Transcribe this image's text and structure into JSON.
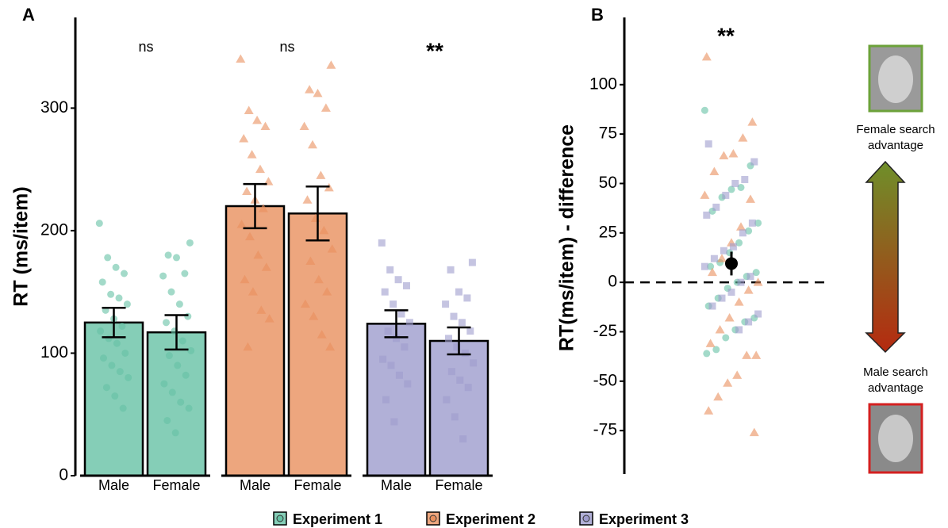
{
  "chart_data": [
    {
      "type": "bar",
      "panel_label": "A",
      "ylabel": "RT (ms/item)",
      "categories": [
        "Male",
        "Female"
      ],
      "ylim": [
        0,
        374
      ],
      "yticks": [
        0,
        100,
        200,
        300
      ],
      "annotations": [
        "ns",
        "ns",
        "**"
      ],
      "series": [
        {
          "name": "Experiment 1",
          "color": "#66c2a5",
          "marker": "circle",
          "values": [
            125,
            117
          ],
          "errors": [
            12,
            14
          ],
          "points": [
            [
              206,
              178,
              170,
              165,
              158,
              148,
              145,
              140,
              135,
              128,
              122,
              118,
              112,
              108,
              100,
              96,
              90,
              85,
              80,
              72,
              65,
              55
            ],
            [
              190,
              180,
              178,
              165,
              163,
              150,
              140,
              130,
              125,
              118,
              110,
              102,
              98,
              90,
              82,
              75,
              68,
              60,
              55,
              45,
              35
            ]
          ]
        },
        {
          "name": "Experiment 2",
          "color": "#e9905e",
          "marker": "triangle",
          "values": [
            220,
            214
          ],
          "errors": [
            18,
            22
          ],
          "points": [
            [
              340,
              298,
              290,
              285,
              275,
              262,
              250,
              240,
              232,
              225,
              218,
              205,
              195,
              180,
              170,
              160,
              150,
              135,
              128,
              105
            ],
            [
              335,
              315,
              312,
              300,
              285,
              270,
              245,
              235,
              225,
              210,
              200,
              185,
              175,
              160,
              150,
              140,
              130,
              115,
              105
            ]
          ]
        },
        {
          "name": "Experiment 3",
          "color": "#9e9ccd",
          "marker": "square",
          "values": [
            124,
            110
          ],
          "errors": [
            11,
            11
          ],
          "points": [
            [
              190,
              168,
              160,
              155,
              150,
              140,
              132,
              125,
              118,
              112,
              105,
              95,
              90,
              82,
              75,
              62,
              44
            ],
            [
              174,
              168,
              150,
              145,
              140,
              130,
              125,
              118,
              112,
              105,
              100,
              92,
              85,
              78,
              72,
              62,
              48,
              30
            ]
          ]
        }
      ]
    },
    {
      "type": "strip",
      "panel_label": "B",
      "ylabel": "RT(ms/item) - difference",
      "ylim": [
        -97,
        134
      ],
      "yticks": [
        -75,
        -50,
        -25,
        0,
        25,
        50,
        75,
        100
      ],
      "annotation": "**",
      "mean": 9.5,
      "error": 6,
      "reference_line": 0,
      "top_label": "Female search advantage",
      "bottom_label": "Male search advantage",
      "series": [
        {
          "name": "Experiment 1",
          "color": "#66c2a5",
          "marker": "circle",
          "values": [
            87,
            59,
            48,
            47,
            43,
            36,
            30,
            26,
            20,
            15,
            10,
            8,
            5,
            3,
            0,
            -3,
            -8,
            -12,
            -18,
            -20,
            -24,
            -28,
            -34,
            -36
          ]
        },
        {
          "name": "Experiment 2",
          "color": "#e9905e",
          "marker": "triangle",
          "values": [
            114,
            81,
            73,
            65,
            64,
            56,
            44,
            42,
            28,
            20,
            12,
            5,
            0,
            -4,
            -10,
            -18,
            -24,
            -31,
            -37,
            -37,
            -47,
            -51,
            -58,
            -65,
            -76
          ]
        },
        {
          "name": "Experiment 3",
          "color": "#9e9ccd",
          "marker": "square",
          "values": [
            70,
            61,
            52,
            50,
            44,
            38,
            34,
            30,
            25,
            18,
            16,
            12,
            8,
            3,
            0,
            -5,
            -8,
            -12,
            -16,
            -20,
            -24
          ]
        }
      ]
    }
  ]
}
